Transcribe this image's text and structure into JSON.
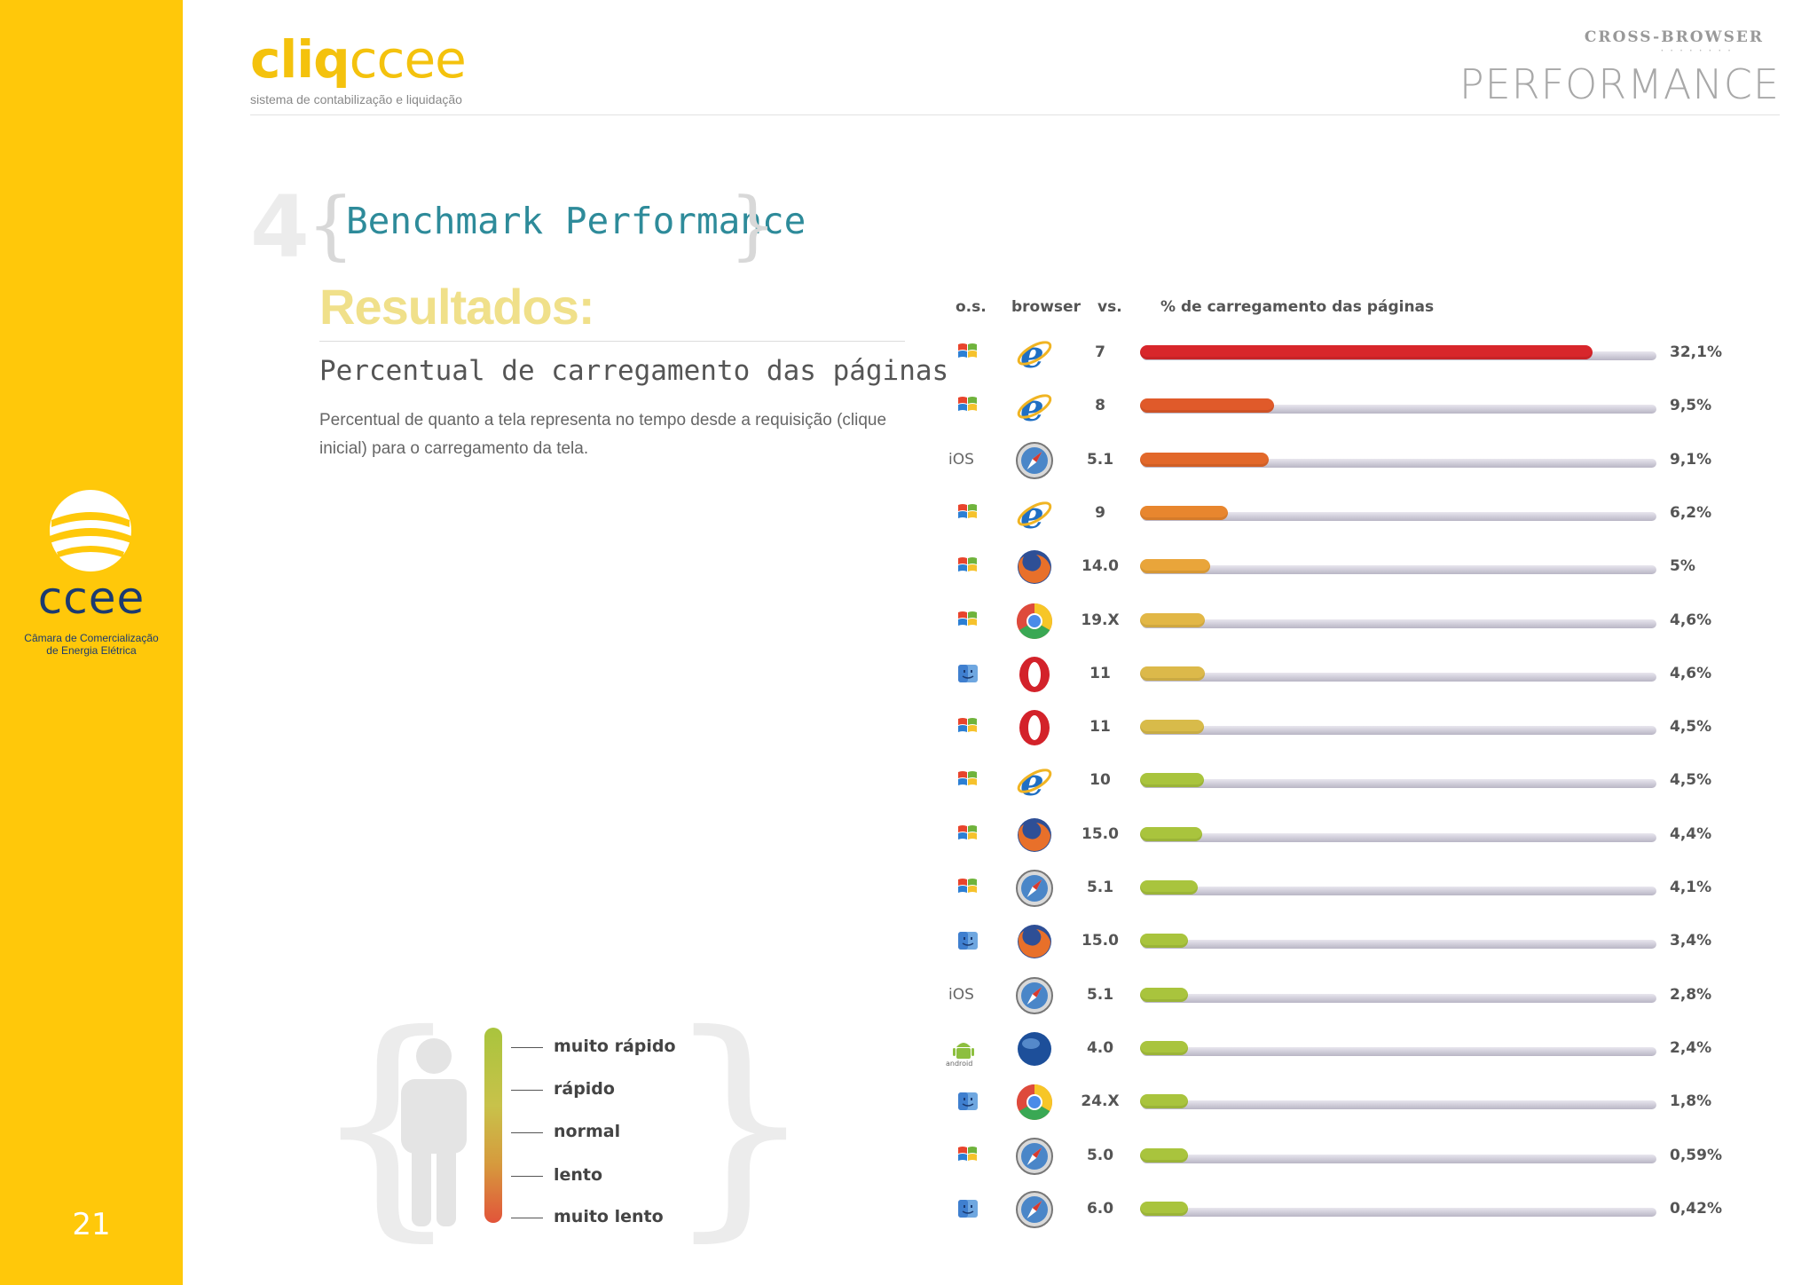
{
  "sidebar": {
    "logo_text": "ccee",
    "org_line1": "Câmara de Comercialização",
    "org_line2": "de Energia Elétrica",
    "page_number": "21",
    "color": "#FFC80A"
  },
  "header": {
    "brand_bold": "cliq",
    "brand_light": "ccee",
    "brand_tagline": "sistema de contabilização e liquidação",
    "kicker": "CROSS-BROWSER",
    "title": "PERFORMANCE"
  },
  "section": {
    "number": "4",
    "title": "Benchmark Performance",
    "heading": "Resultados:",
    "subtitle": "Percentual de carregamento das páginas",
    "description": "Percentual de quanto a tela representa no tempo desde a requisição (clique inicial) para o carregamento da tela."
  },
  "columns": {
    "os": "o.s.",
    "browser": "browser",
    "version": "vs.",
    "metric": "% de carregamento das páginas"
  },
  "legend": {
    "labels": [
      "muito rápido",
      "rápido",
      "normal",
      "lento",
      "muito lento"
    ]
  },
  "chart_data": {
    "type": "bar",
    "orientation": "horizontal",
    "unit": "%",
    "xlim": [
      0,
      36.5
    ],
    "rows": [
      {
        "os": "windows-icon",
        "browser": "internet-explorer-icon",
        "version": "7",
        "value": 32.1,
        "label": "32,1%",
        "color": "#d8262b"
      },
      {
        "os": "windows-icon",
        "browser": "internet-explorer-icon",
        "version": "8",
        "value": 9.5,
        "label": "9,5%",
        "color": "#e05a2a"
      },
      {
        "os": "ios-icon",
        "browser": "safari-icon",
        "version": "5.1",
        "value": 9.1,
        "label": "9,1%",
        "color": "#e2682a"
      },
      {
        "os": "windows-icon",
        "browser": "internet-explorer-icon",
        "version": "9",
        "value": 6.2,
        "label": "6,2%",
        "color": "#e8862e"
      },
      {
        "os": "windows-icon",
        "browser": "firefox-icon",
        "version": "14.0",
        "value": 5,
        "label": "5%",
        "color": "#e9a53a"
      },
      {
        "os": "windows-icon",
        "browser": "chrome-icon",
        "version": "19.X",
        "value": 4.6,
        "label": "4,6%",
        "color": "#e2b746"
      },
      {
        "os": "mac-icon",
        "browser": "opera-icon",
        "version": "11",
        "value": 4.6,
        "label": "4,6%",
        "color": "#dcb94a"
      },
      {
        "os": "windows-icon",
        "browser": "opera-icon",
        "version": "11",
        "value": 4.5,
        "label": "4,5%",
        "color": "#d8bb4a"
      },
      {
        "os": "windows-icon",
        "browser": "internet-explorer-icon",
        "version": "10",
        "value": 4.5,
        "label": "4,5%",
        "color": "#a9c43d"
      },
      {
        "os": "windows-icon",
        "browser": "firefox-icon",
        "version": "15.0",
        "value": 4.4,
        "label": "4,4%",
        "color": "#a9c43d"
      },
      {
        "os": "windows-icon",
        "browser": "safari-icon",
        "version": "5.1",
        "value": 4.1,
        "label": "4,1%",
        "color": "#a9c43d"
      },
      {
        "os": "mac-icon",
        "browser": "firefox-icon",
        "version": "15.0",
        "value": 3.4,
        "label": "3,4%",
        "color": "#a9c43d"
      },
      {
        "os": "ios-icon",
        "browser": "safari-icon",
        "version": "5.1",
        "value": 2.8,
        "label": "2,8%",
        "color": "#a9c43d"
      },
      {
        "os": "android-icon",
        "browser": "android-browser-icon",
        "version": "4.0",
        "value": 2.4,
        "label": "2,4%",
        "color": "#a9c43d"
      },
      {
        "os": "mac-icon",
        "browser": "chrome-icon",
        "version": "24.X",
        "value": 1.8,
        "label": "1,8%",
        "color": "#a9c43d"
      },
      {
        "os": "windows-icon",
        "browser": "safari-icon",
        "version": "5.0",
        "value": 0.59,
        "label": "0,59%",
        "color": "#a9c43d"
      },
      {
        "os": "mac-icon",
        "browser": "safari-icon",
        "version": "6.0",
        "value": 0.42,
        "label": "0,42%",
        "color": "#a9c43d"
      }
    ]
  }
}
